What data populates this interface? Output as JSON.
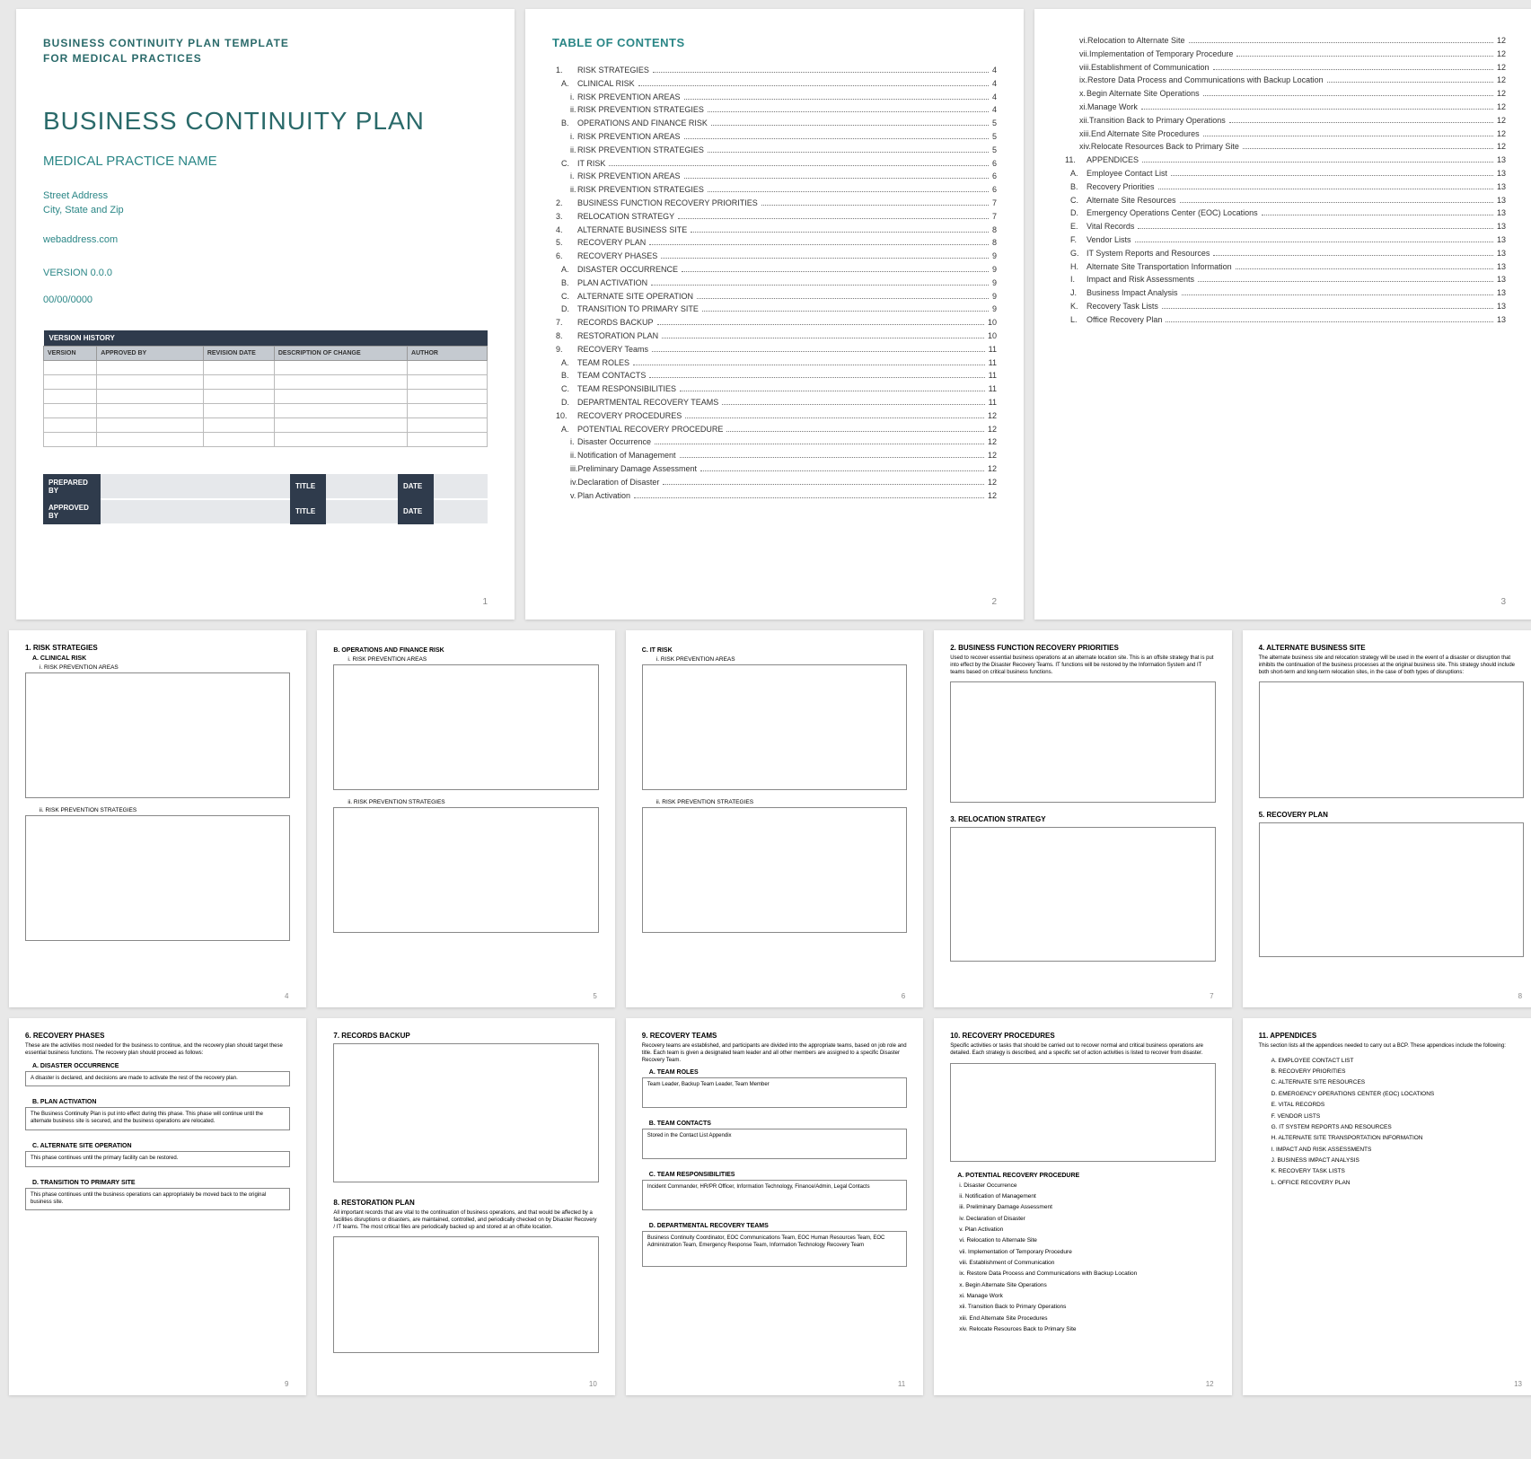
{
  "p1": {
    "template_line1": "BUSINESS CONTINUITY PLAN TEMPLATE",
    "template_line2": "FOR MEDICAL PRACTICES",
    "title": "BUSINESS CONTINUITY PLAN",
    "practice": "MEDICAL PRACTICE NAME",
    "addr1": "Street Address",
    "addr2": "City, State and Zip",
    "web": "webaddress.com",
    "version": "VERSION 0.0.0",
    "date": "00/00/0000",
    "vh_header": "VERSION HISTORY",
    "vh_cols": [
      "VERSION",
      "APPROVED BY",
      "REVISION DATE",
      "DESCRIPTION OF CHANGE",
      "AUTHOR"
    ],
    "sig": {
      "prepared": "PREPARED BY",
      "approved": "APPROVED BY",
      "title": "TITLE",
      "date": "DATE"
    },
    "num": "1"
  },
  "toc_title": "TABLE OF CONTENTS",
  "toc2": [
    {
      "m": "1.",
      "t": "RISK STRATEGIES",
      "p": "4",
      "lvl": 0
    },
    {
      "m": "A.",
      "t": "CLINICAL RISK",
      "p": "4",
      "lvl": 1
    },
    {
      "m": "i.",
      "t": "RISK PREVENTION AREAS",
      "p": "4",
      "lvl": 2
    },
    {
      "m": "ii.",
      "t": "RISK PREVENTION STRATEGIES",
      "p": "4",
      "lvl": 2
    },
    {
      "m": "B.",
      "t": "OPERATIONS AND FINANCE RISK",
      "p": "5",
      "lvl": 1
    },
    {
      "m": "i.",
      "t": "RISK PREVENTION AREAS",
      "p": "5",
      "lvl": 2
    },
    {
      "m": "ii.",
      "t": "RISK PREVENTION STRATEGIES",
      "p": "5",
      "lvl": 2
    },
    {
      "m": "C.",
      "t": "IT RISK",
      "p": "6",
      "lvl": 1
    },
    {
      "m": "i.",
      "t": "RISK PREVENTION AREAS",
      "p": "6",
      "lvl": 2
    },
    {
      "m": "ii.",
      "t": "RISK PREVENTION STRATEGIES",
      "p": "6",
      "lvl": 2
    },
    {
      "m": "2.",
      "t": "BUSINESS FUNCTION RECOVERY PRIORITIES",
      "p": "7",
      "lvl": 0
    },
    {
      "m": "3.",
      "t": "RELOCATION STRATEGY",
      "p": "7",
      "lvl": 0
    },
    {
      "m": "4.",
      "t": "ALTERNATE BUSINESS SITE",
      "p": "8",
      "lvl": 0
    },
    {
      "m": "5.",
      "t": "RECOVERY PLAN",
      "p": "8",
      "lvl": 0
    },
    {
      "m": "6.",
      "t": "RECOVERY PHASES",
      "p": "9",
      "lvl": 0
    },
    {
      "m": "A.",
      "t": "DISASTER OCCURRENCE",
      "p": "9",
      "lvl": 1
    },
    {
      "m": "B.",
      "t": "PLAN ACTIVATION",
      "p": "9",
      "lvl": 1
    },
    {
      "m": "C.",
      "t": "ALTERNATE SITE OPERATION",
      "p": "9",
      "lvl": 1
    },
    {
      "m": "D.",
      "t": "TRANSITION TO PRIMARY SITE",
      "p": "9",
      "lvl": 1
    },
    {
      "m": "7.",
      "t": "RECORDS BACKUP",
      "p": "10",
      "lvl": 0
    },
    {
      "m": "8.",
      "t": "RESTORATION PLAN",
      "p": "10",
      "lvl": 0
    },
    {
      "m": "9.",
      "t": "RECOVERY Teams",
      "p": "11",
      "lvl": 0
    },
    {
      "m": "A.",
      "t": "TEAM ROLES",
      "p": "11",
      "lvl": 1
    },
    {
      "m": "B.",
      "t": "TEAM CONTACTS",
      "p": "11",
      "lvl": 1
    },
    {
      "m": "C.",
      "t": "TEAM RESPONSIBILITIES",
      "p": "11",
      "lvl": 1
    },
    {
      "m": "D.",
      "t": "DEPARTMENTAL RECOVERY TEAMS",
      "p": "11",
      "lvl": 1
    },
    {
      "m": "10.",
      "t": "RECOVERY PROCEDURES",
      "p": "12",
      "lvl": 0
    },
    {
      "m": "A.",
      "t": "POTENTIAL RECOVERY PROCEDURE",
      "p": "12",
      "lvl": 1
    },
    {
      "m": "i.",
      "t": "Disaster Occurrence",
      "p": "12",
      "lvl": 2
    },
    {
      "m": "ii.",
      "t": "Notification of Management",
      "p": "12",
      "lvl": 2
    },
    {
      "m": "iii.",
      "t": "Preliminary Damage Assessment",
      "p": "12",
      "lvl": 2
    },
    {
      "m": "iv.",
      "t": "Declaration of Disaster",
      "p": "12",
      "lvl": 2
    },
    {
      "m": "v.",
      "t": "Plan Activation",
      "p": "12",
      "lvl": 2
    }
  ],
  "toc3": [
    {
      "m": "vi.",
      "t": "Relocation to Alternate Site",
      "p": "12",
      "lvl": 2
    },
    {
      "m": "vii.",
      "t": "Implementation of Temporary Procedure",
      "p": "12",
      "lvl": 2
    },
    {
      "m": "viii.",
      "t": "Establishment of Communication",
      "p": "12",
      "lvl": 2
    },
    {
      "m": "ix.",
      "t": "Restore Data Process and Communications with Backup Location",
      "p": "12",
      "lvl": 2
    },
    {
      "m": "x.",
      "t": "Begin Alternate Site Operations",
      "p": "12",
      "lvl": 2
    },
    {
      "m": "xi.",
      "t": "Manage Work",
      "p": "12",
      "lvl": 2
    },
    {
      "m": "xii.",
      "t": "Transition Back to Primary Operations",
      "p": "12",
      "lvl": 2
    },
    {
      "m": "xiii.",
      "t": "End Alternate Site Procedures",
      "p": "12",
      "lvl": 2
    },
    {
      "m": "xiv.",
      "t": "Relocate Resources Back to Primary Site",
      "p": "12",
      "lvl": 2
    },
    {
      "m": "11.",
      "t": "APPENDICES",
      "p": "13",
      "lvl": 0
    },
    {
      "m": "A.",
      "t": "Employee Contact List",
      "p": "13",
      "lvl": 1
    },
    {
      "m": "B.",
      "t": "Recovery Priorities",
      "p": "13",
      "lvl": 1
    },
    {
      "m": "C.",
      "t": "Alternate Site Resources",
      "p": "13",
      "lvl": 1
    },
    {
      "m": "D.",
      "t": "Emergency Operations Center (EOC) Locations",
      "p": "13",
      "lvl": 1
    },
    {
      "m": "E.",
      "t": "Vital Records",
      "p": "13",
      "lvl": 1
    },
    {
      "m": "F.",
      "t": "Vendor Lists",
      "p": "13",
      "lvl": 1
    },
    {
      "m": "G.",
      "t": "IT System Reports and Resources",
      "p": "13",
      "lvl": 1
    },
    {
      "m": "H.",
      "t": "Alternate Site Transportation Information",
      "p": "13",
      "lvl": 1
    },
    {
      "m": "I.",
      "t": "Impact and Risk Assessments",
      "p": "13",
      "lvl": 1
    },
    {
      "m": "J.",
      "t": "Business Impact Analysis",
      "p": "13",
      "lvl": 1
    },
    {
      "m": "K.",
      "t": "Recovery Task Lists",
      "p": "13",
      "lvl": 1
    },
    {
      "m": "L.",
      "t": "Office Recovery Plan",
      "p": "13",
      "lvl": 1
    }
  ],
  "p4": {
    "h1": "1.   RISK STRATEGIES",
    "h2a": "A.  CLINICAL RISK",
    "h3a": "i.    RISK PREVENTION AREAS",
    "h3b": "ii.   RISK PREVENTION STRATEGIES",
    "num": "4"
  },
  "p5": {
    "h2": "B.  OPERATIONS AND FINANCE RISK",
    "h3a": "i.    RISK PREVENTION AREAS",
    "h3b": "ii.   RISK PREVENTION STRATEGIES",
    "num": "5"
  },
  "p6": {
    "h2": "C.  IT RISK",
    "h3a": "i.    RISK PREVENTION AREAS",
    "h3b": "ii.   RISK PREVENTION STRATEGIES",
    "num": "6"
  },
  "p7": {
    "h1": "2.   BUSINESS FUNCTION RECOVERY PRIORITIES",
    "desc": "Used to recover essential business operations at an alternate location site. This is an offsite strategy that is put into effect by the Disaster Recovery Teams. IT functions will be restored by the Information System and IT teams based on critical business functions.",
    "h2": "3.   RELOCATION STRATEGY",
    "num": "7"
  },
  "p8": {
    "h1": "4.   ALTERNATE BUSINESS SITE",
    "desc": "The alternate business site and relocation strategy will be used in the event of a disaster or disruption that inhibits the continuation of the business processes at the original business site. This strategy should include both short-term and long-term relocation sites, in the case of both types of disruptions:",
    "h2": "5.   RECOVERY PLAN",
    "num": "8"
  },
  "p9": {
    "h1": "6.   RECOVERY PHASES",
    "desc": "These are the activities most needed for the business to continue, and the recovery plan should target these essential business functions. The recovery plan should proceed as follows:",
    "a": {
      "h": "A.  DISASTER OCCURRENCE",
      "t": "A disaster is declared, and decisions are made to activate the rest of the recovery plan."
    },
    "b": {
      "h": "B.  PLAN ACTIVATION",
      "t": "The Business Continuity Plan is put into effect during this phase. This phase will continue until the alternate business site is secured, and the business operations are relocated."
    },
    "c": {
      "h": "C.  ALTERNATE SITE OPERATION",
      "t": "This phase continues until the primary facility can be restored."
    },
    "d": {
      "h": "D.  TRANSITION TO PRIMARY SITE",
      "t": "This phase continues until the business operations can appropriately be moved back to the original business site."
    },
    "num": "9"
  },
  "p10": {
    "h1": "7.   RECORDS BACKUP",
    "h2": "8.   RESTORATION PLAN",
    "desc": "All important records that are vital to the continuation of business operations, and that would be affected by a facilities disruptions or disasters, are maintained, controlled, and periodically checked on by Disaster Recovery / IT teams. The most critical files are periodically backed up and stored at an offsite location.",
    "num": "10"
  },
  "p11": {
    "h1": "9.   RECOVERY TEAMS",
    "desc": "Recovery teams are established, and participants are divided into the appropriate teams, based on job role and title. Each team is given a designated team leader and all other members are assigned to a specific Disaster Recovery Team.",
    "a": {
      "h": "A.  TEAM ROLES",
      "t": "Team Leader, Backup Team Leader, Team Member"
    },
    "b": {
      "h": "B.  TEAM CONTACTS",
      "t": "Stored in the Contact List Appendix"
    },
    "c": {
      "h": "C.  TEAM RESPONSIBILITIES",
      "t": "Incident Commander, HR/PR Officer, Information Technology, Finance/Admin, Legal Contacts"
    },
    "d": {
      "h": "D.  DEPARTMENTAL RECOVERY TEAMS",
      "t": "Business Continuity Coordinator, EOC Communications Team, EOC Human Resources Team, EOC Administration Team, Emergency Response Team, Information Technology Recovery Team"
    },
    "num": "11"
  },
  "p12": {
    "h1": "10.   RECOVERY PROCEDURES",
    "desc": "Specific activities or tasks that should be carried out to recover normal and critical business operations are detailed. Each strategy is described, and a specific set of action activities is listed to recover from disaster.",
    "h2": "A.  POTENTIAL RECOVERY PROCEDURE",
    "items": [
      "i.    Disaster Occurrence",
      "ii.   Notification of Management",
      "iii.  Preliminary Damage Assessment",
      "iv.  Declaration of Disaster",
      "v.   Plan Activation",
      "vi.  Relocation to Alternate Site",
      "vii. Implementation of Temporary Procedure",
      "viii. Establishment of Communication",
      "ix.  Restore Data Process and Communications with Backup Location",
      "x.   Begin Alternate Site Operations",
      "xi.  Manage Work",
      "xii. Transition Back to Primary Operations",
      "xiii. End Alternate Site Procedures",
      "xiv. Relocate Resources Back to Primary Site"
    ],
    "num": "12"
  },
  "p13": {
    "h1": "11.   APPENDICES",
    "desc": "This section lists all the appendices needed to carry out a BCP. These appendices include the following:",
    "items": [
      "A.  EMPLOYEE CONTACT LIST",
      "B.  RECOVERY PRIORITIES",
      "C.  ALTERNATE SITE RESOURCES",
      "D.  EMERGENCY OPERATIONS CENTER (EOC) LOCATIONS",
      "E.  VITAL RECORDS",
      "F.  VENDOR LISTS",
      "G.  IT SYSTEM REPORTS AND RESOURCES",
      "H.  ALTERNATE SITE TRANSPORTATION INFORMATION",
      "I.  IMPACT AND RISK ASSESSMENTS",
      "J.  BUSINESS IMPACT ANALYSIS",
      "K.  RECOVERY TASK LISTS",
      "L.  OFFICE RECOVERY PLAN"
    ],
    "num": "13"
  }
}
